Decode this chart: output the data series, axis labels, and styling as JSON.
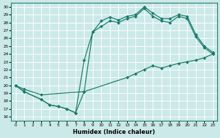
{
  "xlabel": "Humidex (Indice chaleur)",
  "bg_color": "#cce9e9",
  "grid_color": "#ffffff",
  "line_color": "#1a7a6a",
  "xlim": [
    -0.5,
    23.5
  ],
  "ylim": [
    15.5,
    30.5
  ],
  "yticks": [
    16,
    17,
    18,
    19,
    20,
    21,
    22,
    23,
    24,
    25,
    26,
    27,
    28,
    29,
    30
  ],
  "xticks": [
    0,
    1,
    2,
    3,
    4,
    5,
    6,
    7,
    8,
    9,
    10,
    11,
    12,
    13,
    14,
    15,
    16,
    17,
    18,
    19,
    20,
    21,
    22,
    23
  ],
  "line1_x": [
    0,
    1,
    3,
    4,
    5,
    6,
    7,
    8,
    9,
    10,
    11,
    12,
    13,
    14,
    15,
    16,
    17,
    18,
    19,
    20,
    21,
    22,
    23
  ],
  "line1_y": [
    20,
    19.2,
    18.2,
    17.5,
    17.3,
    17.0,
    16.5,
    19.2,
    26.8,
    28.2,
    28.7,
    28.3,
    28.8,
    29.0,
    30.0,
    29.2,
    28.5,
    28.5,
    29.0,
    28.8,
    26.5,
    25.0,
    24.2
  ],
  "line2_x": [
    0,
    1,
    3,
    4,
    5,
    6,
    7,
    8,
    9,
    10,
    11,
    12,
    13,
    14,
    15,
    16,
    17,
    18,
    19,
    20,
    21,
    22,
    23
  ],
  "line2_y": [
    20,
    19.2,
    18.2,
    17.5,
    17.3,
    17.0,
    16.5,
    23.2,
    26.8,
    27.5,
    28.2,
    28.0,
    28.5,
    28.8,
    29.8,
    28.8,
    28.2,
    28.0,
    28.8,
    28.5,
    26.2,
    24.8,
    24.0
  ],
  "line3_x": [
    0,
    1,
    3,
    8,
    13,
    14,
    15,
    16,
    17,
    18,
    19,
    20,
    21,
    22,
    23
  ],
  "line3_y": [
    20.0,
    19.5,
    18.8,
    19.2,
    21.0,
    21.5,
    22.0,
    22.5,
    22.2,
    22.5,
    22.8,
    23.0,
    23.2,
    23.5,
    24.0
  ]
}
